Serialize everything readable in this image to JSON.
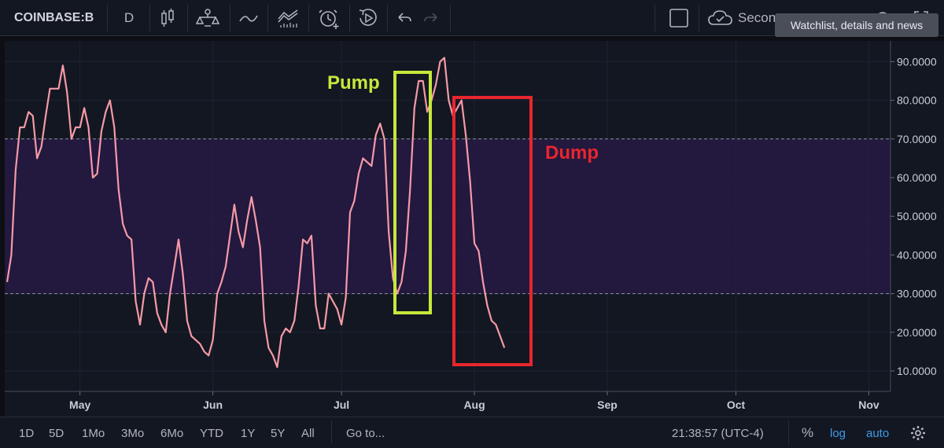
{
  "toolbar": {
    "symbol": "COINBASE:B",
    "interval": "D",
    "snapshot_label": "Secon",
    "icons": [
      "candles-icon",
      "compare-icon",
      "indicators-icon",
      "templates-icon",
      "alert-icon",
      "replay-icon",
      "undo-icon",
      "redo-icon",
      "fullscreen-square-icon",
      "cloud-save-icon",
      "settings-icon",
      "expand-icon"
    ]
  },
  "tooltip": "Watchlist, details and news",
  "annotations": {
    "pump": "Pump",
    "dump": "Dump",
    "pump_color": "#c6e83a",
    "dump_color": "#e8262e"
  },
  "chart_data": {
    "type": "line",
    "series": [
      {
        "color": "#f59aa6",
        "x": [
          "Apr 14",
          "Apr 15",
          "Apr 16",
          "Apr 17",
          "Apr 18",
          "Apr 19",
          "Apr 20",
          "Apr 21",
          "Apr 22",
          "Apr 23",
          "Apr 24",
          "Apr 25",
          "Apr 26",
          "Apr 27",
          "Apr 28",
          "Apr 29",
          "Apr 30",
          "May 1",
          "May 2",
          "May 3",
          "May 4",
          "May 5",
          "May 6",
          "May 7",
          "May 8",
          "May 9",
          "May 10",
          "May 11",
          "May 12",
          "May 13",
          "May 14",
          "May 15",
          "May 16",
          "May 17",
          "May 18",
          "May 19",
          "May 20",
          "May 21",
          "May 22",
          "May 23",
          "May 24",
          "May 25",
          "May 26",
          "May 27",
          "May 28",
          "May 29",
          "May 30",
          "May 31",
          "Jun 1",
          "Jun 2",
          "Jun 3",
          "Jun 4",
          "Jun 5",
          "Jun 6",
          "Jun 7",
          "Jun 8",
          "Jun 9",
          "Jun 10",
          "Jun 11",
          "Jun 12",
          "Jun 13",
          "Jun 14",
          "Jun 15",
          "Jun 16",
          "Jun 17",
          "Jun 18",
          "Jun 19",
          "Jun 20",
          "Jun 21",
          "Jun 22",
          "Jun 23",
          "Jun 24",
          "Jun 25",
          "Jun 26",
          "Jun 27",
          "Jun 28",
          "Jun 29",
          "Jun 30",
          "Jul 1",
          "Jul 2",
          "Jul 3",
          "Jul 4",
          "Jul 5",
          "Jul 6",
          "Jul 7",
          "Jul 8",
          "Jul 9",
          "Jul 10",
          "Jul 11",
          "Jul 12",
          "Jul 13",
          "Jul 14",
          "Jul 15",
          "Jul 16",
          "Jul 17",
          "Jul 18",
          "Jul 19",
          "Jul 20",
          "Jul 21",
          "Jul 22",
          "Jul 23",
          "Jul 24",
          "Jul 25",
          "Jul 26",
          "Jul 27",
          "Jul 28",
          "Jul 29",
          "Jul 30",
          "Jul 31",
          "Aug 1",
          "Aug 2",
          "Aug 3",
          "Aug 4",
          "Aug 5",
          "Aug 6",
          "Aug 7",
          "Aug 8"
        ],
        "values": [
          33,
          40,
          62,
          73,
          73,
          77,
          76,
          65,
          68,
          76,
          83,
          83,
          83,
          89,
          82,
          70,
          73,
          73,
          78,
          73,
          60,
          61,
          72,
          77,
          80,
          73,
          57,
          48,
          45,
          44,
          28,
          22,
          30,
          34,
          33,
          25,
          22,
          20,
          30,
          37,
          44,
          35,
          23,
          19,
          18,
          17,
          15,
          14,
          18,
          30,
          33,
          37,
          45,
          53,
          46,
          42,
          49,
          55,
          49,
          42,
          23,
          16,
          14,
          11,
          19,
          21,
          20,
          23,
          32,
          44,
          43,
          45,
          27,
          21,
          21,
          30,
          28,
          26,
          22,
          29,
          51,
          54,
          61,
          65,
          64,
          63,
          71,
          74,
          70,
          46,
          34,
          30,
          33,
          41,
          57,
          78,
          85,
          85,
          77,
          80,
          84,
          90,
          91,
          80,
          76,
          78,
          80,
          71,
          59,
          43,
          41,
          33,
          27,
          23,
          22,
          19,
          16
        ]
      }
    ],
    "xlabels": [
      "May",
      "Jun",
      "Jul",
      "Aug",
      "Sep",
      "Oct",
      "Nov"
    ],
    "ylabels": [
      "10.0000",
      "20.0000",
      "30.0000",
      "40.0000",
      "50.0000",
      "60.0000",
      "70.0000",
      "80.0000",
      "90.0000"
    ],
    "ylim": [
      10,
      90
    ],
    "bands": {
      "upper": 70,
      "lower": 30
    },
    "grid": true
  },
  "bottombar": {
    "ranges": [
      "1D",
      "5D",
      "1Mo",
      "3Mo",
      "6Mo",
      "YTD",
      "1Y",
      "5Y",
      "All"
    ],
    "goto": "Go to...",
    "clock": "21:38:57 (UTC-4)",
    "percent": "%",
    "log": "log",
    "auto": "auto"
  }
}
